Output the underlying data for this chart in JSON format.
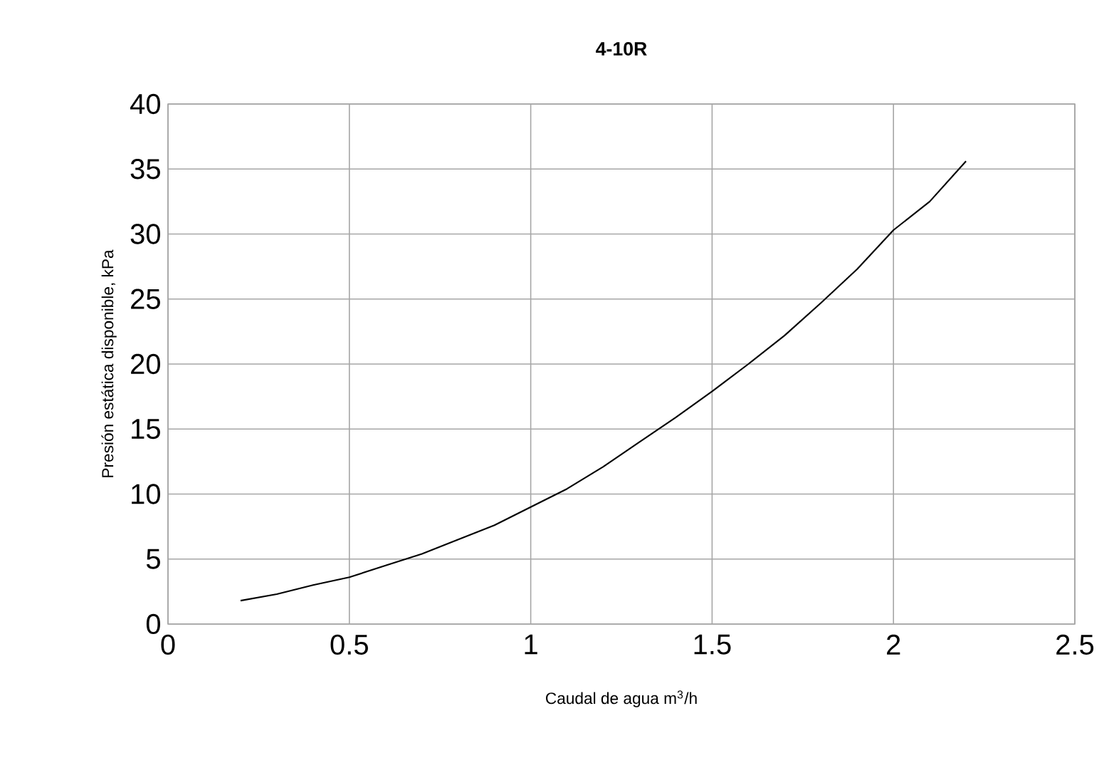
{
  "chart_data": {
    "type": "line",
    "title": "**4-10R**",
    "xlabel": "Caudal de agua m$^{3}$/h",
    "ylabel": "Presión estática disponible, kPa",
    "x": [
      0.2,
      0.3,
      0.4,
      0.5,
      0.6,
      0.7,
      0.8,
      0.9,
      1.0,
      1.1,
      1.2,
      1.3,
      1.4,
      1.5,
      1.6,
      1.7,
      1.8,
      1.9,
      2.0,
      2.1,
      2.2
    ],
    "series": [
      {
        "color": "#000000",
        "values": [
          1.8,
          2.3,
          3.0,
          3.6,
          4.5,
          5.4,
          6.5,
          7.6,
          9.0,
          10.4,
          12.1,
          14.0,
          15.9,
          17.9,
          20.0,
          22.2,
          24.7,
          27.3,
          30.3,
          32.5,
          35.6
        ]
      }
    ],
    "xlim": [
      0,
      2.5
    ],
    "xticks": [
      0,
      0.5,
      1,
      1.5,
      2,
      2.5
    ],
    "ylim": [
      0,
      40
    ],
    "yticks": [
      0,
      5,
      10,
      15,
      20,
      25,
      30,
      35,
      40
    ],
    "grid": true,
    "marker": "none",
    "line_style": "solid"
  }
}
